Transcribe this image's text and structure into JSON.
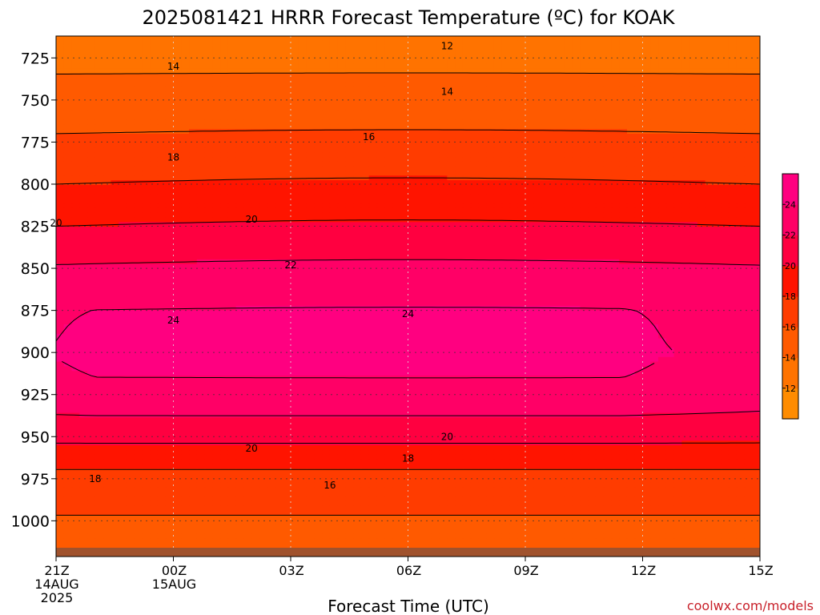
{
  "chart_data": {
    "type": "heatmap",
    "title": "2025081421 HRRR Forecast Temperature (ºC) for KOAK",
    "xlabel": "Forecast Time (UTC)",
    "ylabel": "",
    "watermark": "coolwx.com/models",
    "x_ticks": [
      {
        "lines": [
          "21Z",
          "14AUG",
          "2025"
        ]
      },
      {
        "lines": [
          "00Z",
          "15AUG"
        ]
      },
      {
        "lines": [
          "03Z"
        ]
      },
      {
        "lines": [
          "06Z"
        ]
      },
      {
        "lines": [
          "09Z"
        ]
      },
      {
        "lines": [
          "12Z"
        ]
      },
      {
        "lines": [
          "15Z"
        ]
      }
    ],
    "x_range_hours": [
      0,
      18
    ],
    "y_ticks": [
      "725",
      "750",
      "775",
      "800",
      "825",
      "850",
      "875",
      "900",
      "925",
      "950",
      "975",
      "1000"
    ],
    "y_range_hpa": [
      712,
      1016
    ],
    "grid": true,
    "contour_interval_c": 2,
    "colorbar": {
      "labels": [
        "12",
        "14",
        "16",
        "18",
        "20",
        "22",
        "24"
      ],
      "colors": [
        "#ff8c00",
        "#ff7300",
        "#ff5a00",
        "#ff3c00",
        "#ff1400",
        "#ff0040",
        "#ff0066",
        "#ff0080"
      ],
      "placement": "right"
    },
    "contour_labels": [
      {
        "value": "12",
        "hour": 10.0,
        "hpa": 718
      },
      {
        "value": "14",
        "hour": 3.0,
        "hpa": 730
      },
      {
        "value": "14",
        "hour": 10.0,
        "hpa": 745
      },
      {
        "value": "16",
        "hour": 8.0,
        "hpa": 772
      },
      {
        "value": "18",
        "hour": 3.0,
        "hpa": 784
      },
      {
        "value": "20",
        "hour": 0.0,
        "hpa": 823
      },
      {
        "value": "20",
        "hour": 5.0,
        "hpa": 821
      },
      {
        "value": "22",
        "hour": 6.0,
        "hpa": 848
      },
      {
        "value": "24",
        "hour": 3.0,
        "hpa": 881
      },
      {
        "value": "24",
        "hour": 9.0,
        "hpa": 877
      },
      {
        "value": "20",
        "hour": 5.0,
        "hpa": 957
      },
      {
        "value": "20",
        "hour": 10.0,
        "hpa": 950
      },
      {
        "value": "18",
        "hour": 9.0,
        "hpa": 963
      },
      {
        "value": "18",
        "hour": 1.0,
        "hpa": 975
      },
      {
        "value": "16",
        "hour": 7.0,
        "hpa": 979
      }
    ],
    "temperature_profile_c": [
      {
        "hpa": 712,
        "temp": 13.0
      },
      {
        "hpa": 725,
        "temp": 13.5
      },
      {
        "hpa": 750,
        "temp": 14.8
      },
      {
        "hpa": 775,
        "temp": 16.3
      },
      {
        "hpa": 800,
        "temp": 18.0
      },
      {
        "hpa": 825,
        "temp": 20.0
      },
      {
        "hpa": 850,
        "temp": 22.2
      },
      {
        "hpa": 875,
        "temp": 24.0
      },
      {
        "hpa": 900,
        "temp": 24.7
      },
      {
        "hpa": 925,
        "temp": 23.5
      },
      {
        "hpa": 950,
        "temp": 20.5
      },
      {
        "hpa": 975,
        "temp": 17.3
      },
      {
        "hpa": 1000,
        "temp": 15.8
      },
      {
        "hpa": 1016,
        "temp": 15.5
      }
    ]
  }
}
